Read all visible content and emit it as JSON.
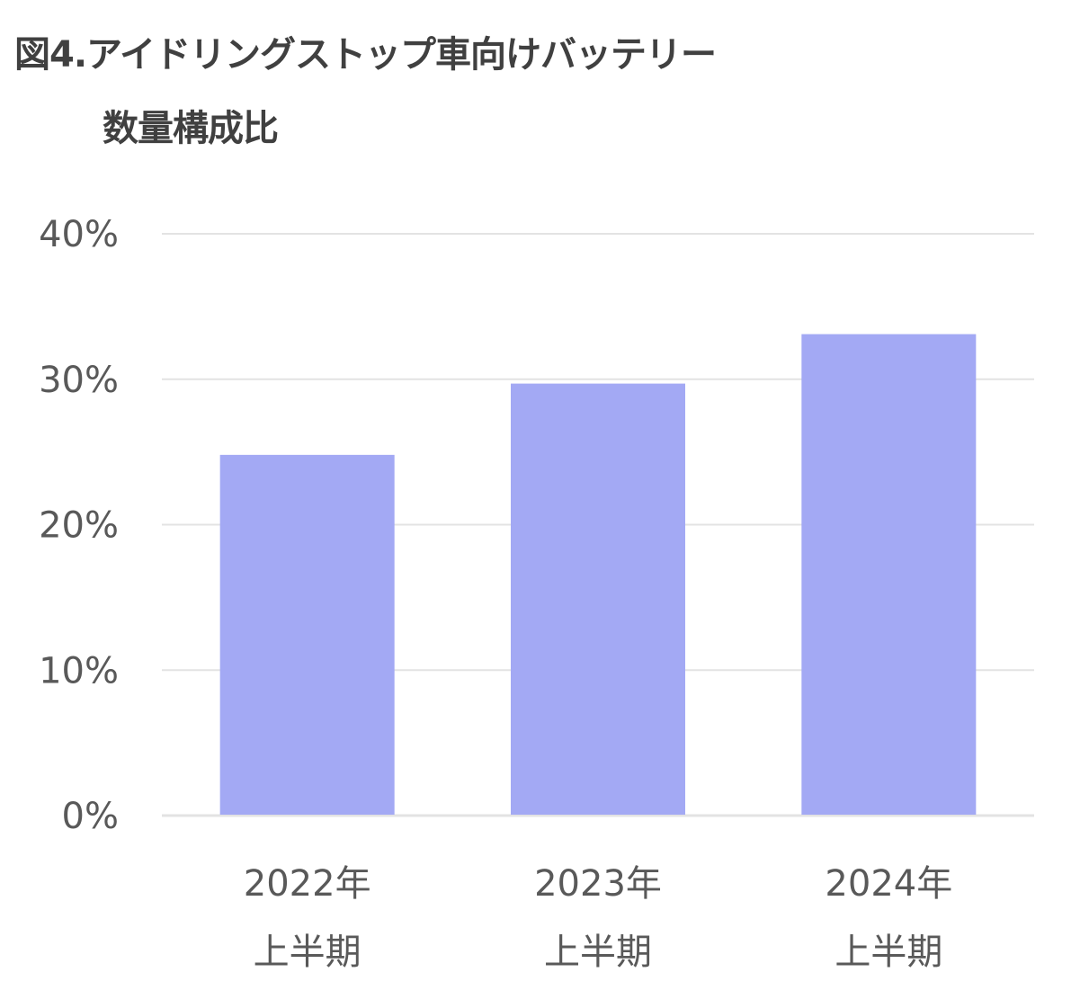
{
  "chart_data": {
    "type": "bar",
    "title_lines": [
      "図4.アイドリングストップ車向けバッテリー",
      "数量構成比"
    ],
    "categories": [
      [
        "2022年",
        "上半期"
      ],
      [
        "2023年",
        "上半期"
      ],
      [
        "2024年",
        "上半期"
      ]
    ],
    "values": [
      24.8,
      29.7,
      33.1
    ],
    "unit": "%",
    "ylim": [
      0,
      40
    ],
    "yticks": [
      0,
      10,
      20,
      30,
      40
    ],
    "ytick_labels": [
      "0%",
      "10%",
      "20%",
      "30%",
      "40%"
    ],
    "grid": true,
    "legend": "none",
    "colors": {
      "bar": "#a3a9f4",
      "grid": "#e3e3e3",
      "axis_text": "#595959",
      "title": "#404040"
    }
  }
}
